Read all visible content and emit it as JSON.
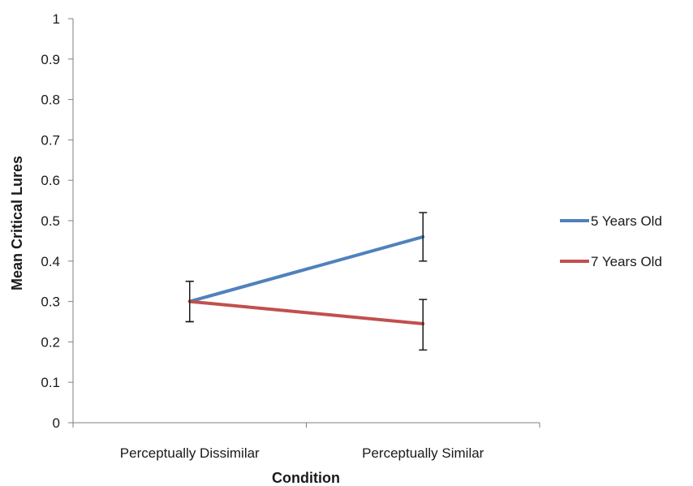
{
  "chart_data": {
    "type": "line",
    "title": "",
    "xlabel": "Condition",
    "ylabel": "Mean Critical Lures",
    "categories": [
      "Perceptually Dissimilar",
      "Perceptually Similar"
    ],
    "ylim": [
      0,
      1
    ],
    "yticks": [
      "0",
      "0.1",
      "0.2",
      "0.3",
      "0.4",
      "0.5",
      "0.6",
      "0.7",
      "0.8",
      "0.9",
      "1"
    ],
    "grid": false,
    "legend_position": "right",
    "series": [
      {
        "name": "5 Years Old",
        "color": "#4F81BD",
        "values": [
          0.3,
          0.46
        ],
        "error_low": [
          0.25,
          0.4
        ],
        "error_high": [
          0.35,
          0.52
        ]
      },
      {
        "name": "7 Years Old",
        "color": "#C0504D",
        "values": [
          0.3,
          0.245
        ],
        "error_low": [
          0.25,
          0.18
        ],
        "error_high": [
          0.35,
          0.305
        ]
      }
    ]
  }
}
